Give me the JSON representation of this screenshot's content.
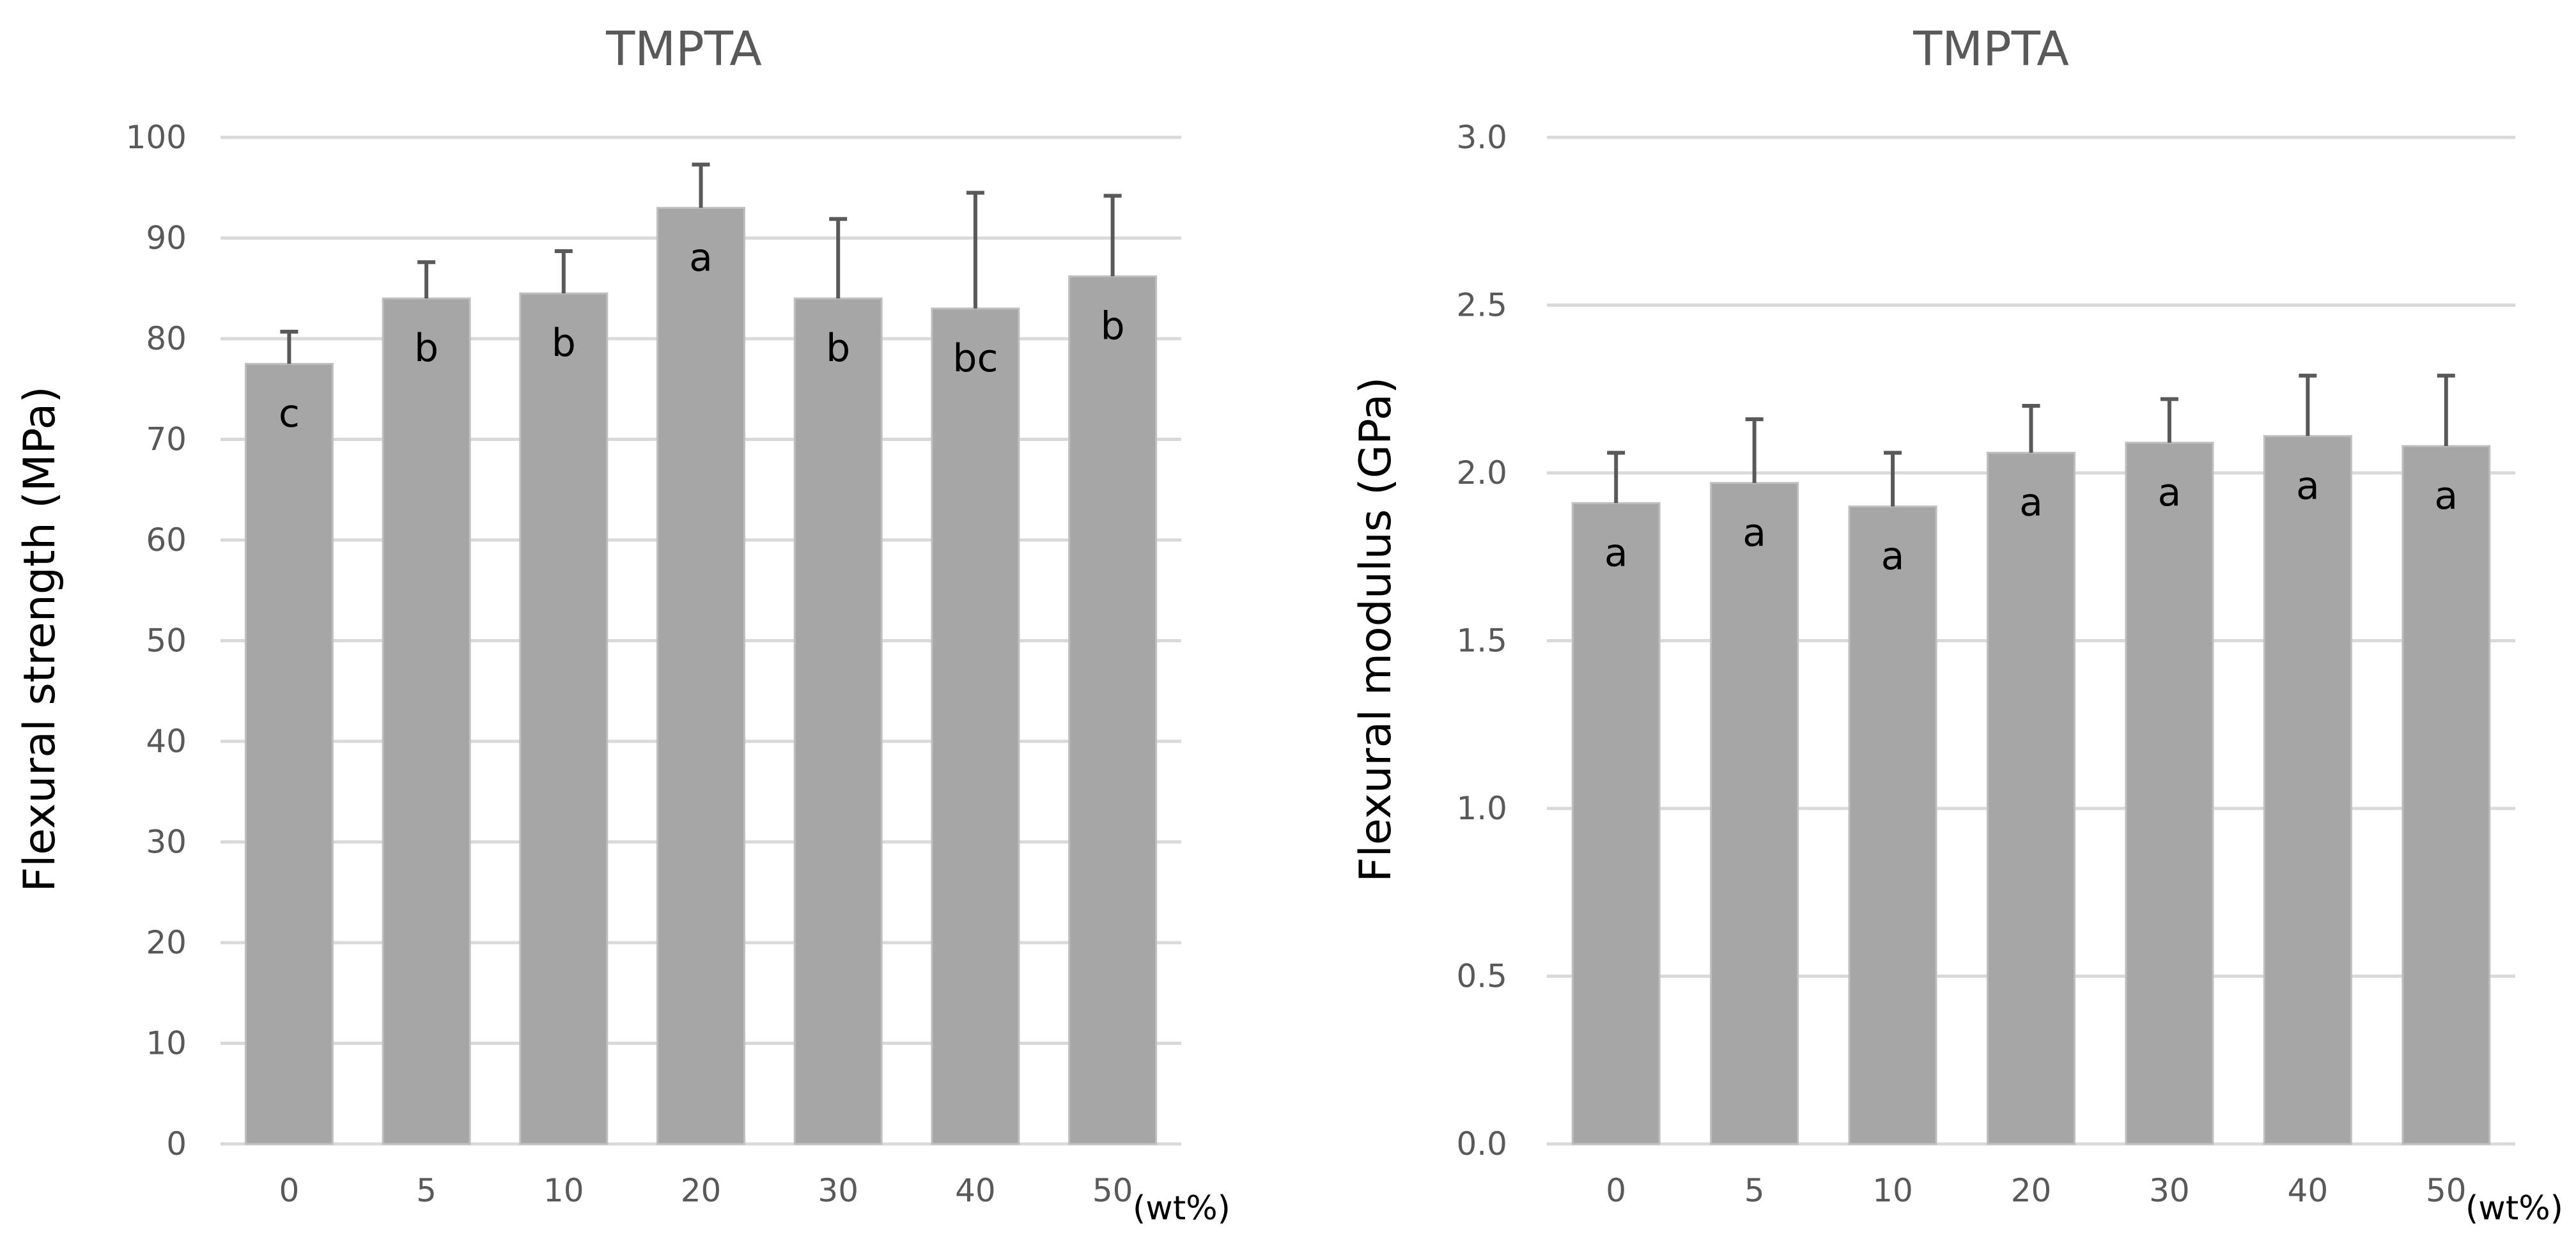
{
  "colors": {
    "bar_fill": "#a6a6a6",
    "gridline": "#d9d9d9",
    "error_bar": "#595959",
    "text_muted": "#595959",
    "text_dark": "#000000"
  },
  "chart_data": [
    {
      "type": "bar",
      "title": "TMPTA",
      "xlabel": "",
      "x_unit_label": "(wt%)",
      "ylabel": "Flexural strength (MPa)",
      "categories": [
        "0",
        "5",
        "10",
        "20",
        "30",
        "40",
        "50"
      ],
      "values": [
        77.5,
        84,
        84.5,
        93,
        84,
        83,
        86.2
      ],
      "errors": [
        3.2,
        3.6,
        4.2,
        4.3,
        7.9,
        11.5,
        8.0
      ],
      "labels": [
        "c",
        "b",
        "b",
        "a",
        "b",
        "bc",
        "b"
      ],
      "ylim": [
        0,
        100
      ],
      "yticks": [
        "0",
        "10",
        "20",
        "30",
        "40",
        "50",
        "60",
        "70",
        "80",
        "90",
        "100"
      ],
      "grid": true,
      "legend": "none"
    },
    {
      "type": "bar",
      "title": "TMPTA",
      "xlabel": "",
      "x_unit_label": "(wt%)",
      "ylabel": "Flexural modulus (GPa)",
      "categories": [
        "0",
        "5",
        "10",
        "20",
        "30",
        "40",
        "50"
      ],
      "values": [
        1.91,
        1.97,
        1.9,
        2.06,
        2.09,
        2.11,
        2.08
      ],
      "errors": [
        0.15,
        0.19,
        0.16,
        0.14,
        0.13,
        0.18,
        0.21
      ],
      "labels": [
        "a",
        "a",
        "a",
        "a",
        "a",
        "a",
        "a"
      ],
      "ylim": [
        0,
        3
      ],
      "yticks": [
        "0.0",
        "0.5",
        "1.0",
        "1.5",
        "2.0",
        "2.5",
        "3.0"
      ],
      "grid": true,
      "legend": "none"
    }
  ]
}
